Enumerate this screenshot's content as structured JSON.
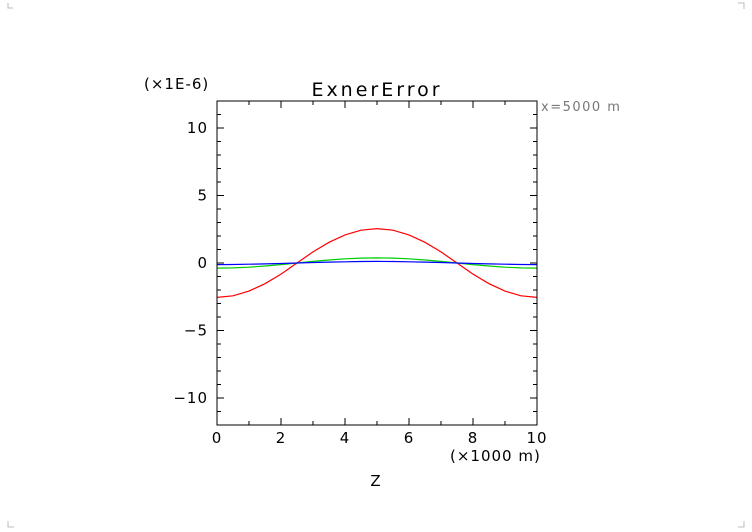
{
  "chart_data": {
    "type": "line",
    "title": "ExnerError",
    "annotation": "x=5000 m",
    "y_multiplier": "(×1E-6)",
    "xlabel": "Z",
    "x_multiplier": "(×1000 m)",
    "xlim": [
      0,
      10
    ],
    "ylim": [
      -12,
      12
    ],
    "x_ticks": [
      0,
      2,
      4,
      6,
      8,
      10
    ],
    "y_ticks": [
      -10,
      -5,
      0,
      5,
      10
    ],
    "y_tick_labels": [
      "−10",
      "−5",
      "0",
      "5",
      "10"
    ],
    "grid": false,
    "x": [
      0,
      0.5,
      1,
      1.5,
      2,
      2.5,
      3,
      3.5,
      4,
      4.5,
      5,
      5.5,
      6,
      6.5,
      7,
      7.5,
      8,
      8.5,
      9,
      9.5,
      10
    ],
    "series": [
      {
        "color": "#ff0000",
        "values": [
          -2.55,
          -2.43,
          -2.08,
          -1.53,
          -0.82,
          0.0,
          0.82,
          1.53,
          2.08,
          2.43,
          2.55,
          2.43,
          2.08,
          1.53,
          0.82,
          0.0,
          -0.82,
          -1.53,
          -2.08,
          -2.43,
          -2.55
        ]
      },
      {
        "color": "#00cc00",
        "values": [
          -0.38,
          -0.36,
          -0.31,
          -0.22,
          -0.12,
          0.0,
          0.12,
          0.22,
          0.31,
          0.36,
          0.38,
          0.36,
          0.31,
          0.22,
          0.12,
          0.0,
          -0.12,
          -0.22,
          -0.31,
          -0.36,
          -0.38
        ]
      },
      {
        "color": "#0000ff",
        "values": [
          -0.12,
          -0.11,
          -0.09,
          -0.07,
          -0.04,
          0.0,
          0.04,
          0.07,
          0.09,
          0.11,
          0.12,
          0.11,
          0.09,
          0.07,
          0.04,
          0.0,
          -0.04,
          -0.07,
          -0.09,
          -0.11,
          -0.12
        ]
      }
    ]
  }
}
